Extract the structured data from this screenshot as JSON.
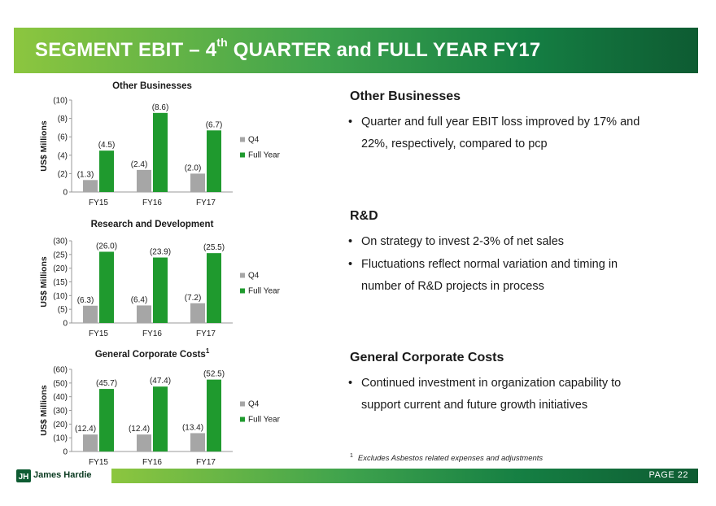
{
  "header": {
    "title_prefix": "SEGMENT EBIT – 4",
    "title_sup": "th",
    "title_suffix": " QUARTER and FULL YEAR FY17"
  },
  "colors": {
    "q4": "#a6a6a6",
    "full_year": "#1f9a2e"
  },
  "chart_data": [
    {
      "type": "bar",
      "title": "Other Businesses",
      "title_sup": "",
      "ylabel": "US$ Millions",
      "categories": [
        "FY15",
        "FY16",
        "FY17"
      ],
      "ylim": [
        0,
        10
      ],
      "yticks": [
        "0",
        "(2)",
        "(4)",
        "(6)",
        "(8)",
        "(10)"
      ],
      "series": [
        {
          "name": "Q4",
          "values": [
            1.3,
            2.4,
            2.0
          ],
          "labels": [
            "(1.3)",
            "(2.4)",
            "(2.0)"
          ]
        },
        {
          "name": "Full Year",
          "values": [
            4.5,
            8.6,
            6.7
          ],
          "labels": [
            "(4.5)",
            "(8.6)",
            "(6.7)"
          ]
        }
      ],
      "legend": [
        "Q4",
        "Full Year"
      ]
    },
    {
      "type": "bar",
      "title": "Research and Development",
      "title_sup": "",
      "ylabel": "US$ Millions",
      "categories": [
        "FY15",
        "FY16",
        "FY17"
      ],
      "ylim": [
        0,
        30
      ],
      "yticks": [
        "0",
        "(5)",
        "(10)",
        "(15)",
        "(20)",
        "(25)",
        "(30)"
      ],
      "series": [
        {
          "name": "Q4",
          "values": [
            6.3,
            6.4,
            7.2
          ],
          "labels": [
            "(6.3)",
            "(6.4)",
            "(7.2)"
          ]
        },
        {
          "name": "Full Year",
          "values": [
            26.0,
            23.9,
            25.5
          ],
          "labels": [
            "(26.0)",
            "(23.9)",
            "(25.5)"
          ]
        }
      ],
      "legend": [
        "Q4",
        "Full Year"
      ]
    },
    {
      "type": "bar",
      "title": "General Corporate Costs",
      "title_sup": "1",
      "ylabel": "US$ Millions",
      "categories": [
        "FY15",
        "FY16",
        "FY17"
      ],
      "ylim": [
        0,
        60
      ],
      "yticks": [
        "0",
        "(10)",
        "(20)",
        "(30)",
        "(40)",
        "(50)",
        "(60)"
      ],
      "series": [
        {
          "name": "Q4",
          "values": [
            12.4,
            12.4,
            13.4
          ],
          "labels": [
            "(12.4)",
            "(12.4)",
            "(13.4)"
          ]
        },
        {
          "name": "Full Year",
          "values": [
            45.7,
            47.4,
            52.5
          ],
          "labels": [
            "(45.7)",
            "(47.4)",
            "(52.5)"
          ]
        }
      ],
      "legend": [
        "Q4",
        "Full Year"
      ]
    }
  ],
  "sections": [
    {
      "title": "Other Businesses",
      "bullets": [
        "Quarter and full year EBIT loss improved by 17% and 22%, respectively, compared to pcp"
      ]
    },
    {
      "title": "R&D",
      "bullets": [
        "On strategy to invest 2-3% of net sales",
        "Fluctuations reflect normal variation and timing in number of R&D projects in process"
      ]
    },
    {
      "title": "General Corporate Costs",
      "bullets": [
        "Continued investment in organization capability to support current and future growth initiatives"
      ]
    }
  ],
  "footnote": {
    "marker": "1",
    "text": "Excludes Asbestos related expenses and adjustments"
  },
  "footer": {
    "logo_text": "James Hardie",
    "page_label": "PAGE  22"
  }
}
